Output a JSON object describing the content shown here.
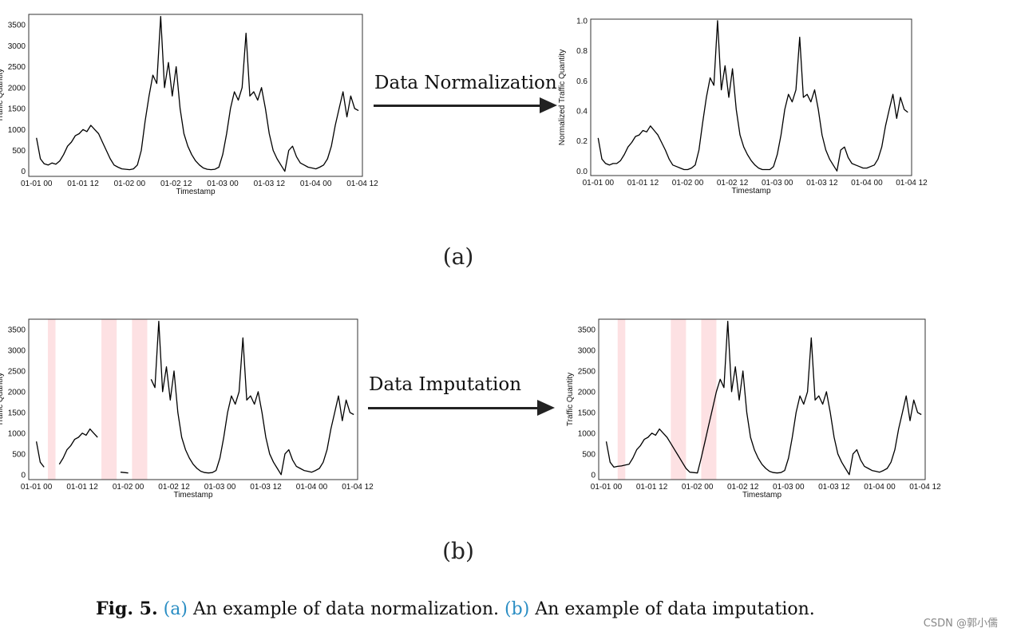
{
  "panels": {
    "a": {
      "label": "(a)",
      "arrow_label": "Data Normalization",
      "left_chart_id": "a_left",
      "right_chart_id": "a_right"
    },
    "b": {
      "label": "(b)",
      "arrow_label": "Data Imputation",
      "left_chart_id": "b_left",
      "right_chart_id": "b_right"
    }
  },
  "caption": {
    "fig": "Fig. 5.",
    "ref_a": "(a)",
    "text_a": " An example of data normalization. ",
    "ref_b": "(b)",
    "text_b": " An example of data imputation."
  },
  "watermark": "CSDN @郭小儒",
  "colors": {
    "line": "#000000",
    "missing_band": "#fde1e3",
    "caption_link": "#2b8ec4"
  },
  "chart_data": [
    {
      "id": "a_left",
      "type": "line",
      "xlabel": "Timestamp",
      "ylabel": "Traffic Quantity",
      "xlim": [
        -2,
        84
      ],
      "ylim": [
        -120,
        3750
      ],
      "xticks": [
        0,
        12,
        24,
        36,
        48,
        60,
        72,
        84
      ],
      "xtick_labels": [
        "01-01 00",
        "01-01 12",
        "01-02 00",
        "01-02 12",
        "01-03 00",
        "01-03 12",
        "01-04 00",
        "01-04 12"
      ],
      "yticks": [
        0,
        500,
        1000,
        1500,
        2000,
        2500,
        3000,
        3500
      ],
      "ytick_labels": [
        "0",
        "500",
        "1000",
        "1500",
        "2000",
        "2500",
        "3000",
        "3500"
      ],
      "x": [
        0,
        1,
        2,
        3,
        4,
        5,
        6,
        7,
        8,
        9,
        10,
        11,
        12,
        13,
        14,
        15,
        16,
        17,
        18,
        19,
        20,
        21,
        22,
        23,
        24,
        25,
        26,
        27,
        28,
        29,
        30,
        31,
        32,
        33,
        34,
        35,
        36,
        37,
        38,
        39,
        40,
        41,
        42,
        43,
        44,
        45,
        46,
        47,
        48,
        49,
        50,
        51,
        52,
        53,
        54,
        55,
        56,
        57,
        58,
        59,
        60,
        61,
        62,
        63,
        64,
        65,
        66,
        67,
        68,
        69,
        70,
        71,
        72,
        73,
        74,
        75,
        76,
        77,
        78,
        79,
        80,
        81,
        82,
        83
      ],
      "y": [
        800,
        300,
        180,
        150,
        200,
        170,
        250,
        400,
        600,
        700,
        850,
        900,
        1000,
        950,
        1100,
        1000,
        900,
        700,
        500,
        300,
        150,
        100,
        60,
        50,
        40,
        60,
        150,
        500,
        1200,
        1800,
        2300,
        2100,
        3700,
        2000,
        2600,
        1800,
        2500,
        1500,
        900,
        600,
        400,
        250,
        150,
        80,
        50,
        40,
        50,
        100,
        400,
        900,
        1500,
        1900,
        1700,
        2000,
        3300,
        1800,
        1900,
        1700,
        2000,
        1500,
        900,
        500,
        300,
        150,
        0,
        500,
        600,
        350,
        200,
        150,
        100,
        80,
        60,
        100,
        150,
        300,
        600,
        1100,
        1500,
        1900,
        1300,
        1800,
        1500,
        1450
      ]
    },
    {
      "id": "a_right",
      "type": "line",
      "xlabel": "Timestamp",
      "ylabel": "Normalized Traffic Quantity",
      "xlim": [
        -2,
        84
      ],
      "ylim": [
        -0.03,
        1.01
      ],
      "xticks": [
        0,
        12,
        24,
        36,
        48,
        60,
        72,
        84
      ],
      "xtick_labels": [
        "01-01 00",
        "01-01 12",
        "01-02 00",
        "01-02 12",
        "01-03 00",
        "01-03 12",
        "01-04 00",
        "01-04 12"
      ],
      "yticks": [
        0.0,
        0.2,
        0.4,
        0.6,
        0.8,
        1.0
      ],
      "ytick_labels": [
        "0.0",
        "0.2",
        "0.4",
        "0.6",
        "0.8",
        "1.0"
      ],
      "x": [
        0,
        1,
        2,
        3,
        4,
        5,
        6,
        7,
        8,
        9,
        10,
        11,
        12,
        13,
        14,
        15,
        16,
        17,
        18,
        19,
        20,
        21,
        22,
        23,
        24,
        25,
        26,
        27,
        28,
        29,
        30,
        31,
        32,
        33,
        34,
        35,
        36,
        37,
        38,
        39,
        40,
        41,
        42,
        43,
        44,
        45,
        46,
        47,
        48,
        49,
        50,
        51,
        52,
        53,
        54,
        55,
        56,
        57,
        58,
        59,
        60,
        61,
        62,
        63,
        64,
        65,
        66,
        67,
        68,
        69,
        70,
        71,
        72,
        73,
        74,
        75,
        76,
        77,
        78,
        79,
        80,
        81,
        82,
        83
      ],
      "y": [
        0.22,
        0.08,
        0.05,
        0.04,
        0.05,
        0.05,
        0.07,
        0.11,
        0.16,
        0.19,
        0.23,
        0.24,
        0.27,
        0.26,
        0.3,
        0.27,
        0.24,
        0.19,
        0.14,
        0.08,
        0.04,
        0.03,
        0.02,
        0.01,
        0.01,
        0.02,
        0.04,
        0.14,
        0.32,
        0.49,
        0.62,
        0.57,
        1.0,
        0.54,
        0.7,
        0.49,
        0.68,
        0.41,
        0.24,
        0.16,
        0.11,
        0.07,
        0.04,
        0.02,
        0.01,
        0.01,
        0.01,
        0.03,
        0.11,
        0.24,
        0.41,
        0.51,
        0.46,
        0.54,
        0.89,
        0.49,
        0.51,
        0.46,
        0.54,
        0.41,
        0.24,
        0.14,
        0.08,
        0.04,
        0.0,
        0.14,
        0.16,
        0.09,
        0.05,
        0.04,
        0.03,
        0.02,
        0.02,
        0.03,
        0.04,
        0.08,
        0.16,
        0.3,
        0.41,
        0.51,
        0.35,
        0.49,
        0.41,
        0.39
      ]
    },
    {
      "id": "b_left",
      "type": "line",
      "xlabel": "Timestamp",
      "ylabel": "Traffic Quantity",
      "xlim": [
        -2,
        84
      ],
      "ylim": [
        -120,
        3750
      ],
      "xticks": [
        0,
        12,
        24,
        36,
        48,
        60,
        72,
        84
      ],
      "xtick_labels": [
        "01-01 00",
        "01-01 12",
        "01-02 00",
        "01-02 12",
        "01-03 00",
        "01-03 12",
        "01-04 00",
        "01-04 12"
      ],
      "yticks": [
        0,
        500,
        1000,
        1500,
        2000,
        2500,
        3000,
        3500
      ],
      "ytick_labels": [
        "0",
        "500",
        "1000",
        "1500",
        "2000",
        "2500",
        "3000",
        "3500"
      ],
      "missing_ranges": [
        [
          3,
          5
        ],
        [
          17,
          21
        ],
        [
          25,
          29
        ]
      ],
      "x": [
        0,
        1,
        2,
        3,
        4,
        5,
        6,
        7,
        8,
        9,
        10,
        11,
        12,
        13,
        14,
        15,
        16,
        17,
        18,
        19,
        20,
        21,
        22,
        23,
        24,
        25,
        26,
        27,
        28,
        29,
        30,
        31,
        32,
        33,
        34,
        35,
        36,
        37,
        38,
        39,
        40,
        41,
        42,
        43,
        44,
        45,
        46,
        47,
        48,
        49,
        50,
        51,
        52,
        53,
        54,
        55,
        56,
        57,
        58,
        59,
        60,
        61,
        62,
        63,
        64,
        65,
        66,
        67,
        68,
        69,
        70,
        71,
        72,
        73,
        74,
        75,
        76,
        77,
        78,
        79,
        80,
        81,
        82,
        83
      ],
      "y": [
        800,
        300,
        180,
        null,
        null,
        null,
        250,
        400,
        600,
        700,
        850,
        900,
        1000,
        950,
        1100,
        1000,
        900,
        null,
        null,
        null,
        null,
        null,
        60,
        50,
        40,
        null,
        null,
        null,
        null,
        null,
        2300,
        2100,
        3700,
        2000,
        2600,
        1800,
        2500,
        1500,
        900,
        600,
        400,
        250,
        150,
        80,
        50,
        40,
        50,
        100,
        400,
        900,
        1500,
        1900,
        1700,
        2000,
        3300,
        1800,
        1900,
        1700,
        2000,
        1500,
        900,
        500,
        300,
        150,
        0,
        500,
        600,
        350,
        200,
        150,
        100,
        80,
        60,
        100,
        150,
        300,
        600,
        1100,
        1500,
        1900,
        1300,
        1800,
        1500,
        1450
      ]
    },
    {
      "id": "b_right",
      "type": "line",
      "xlabel": "Timestamp",
      "ylabel": "Traffic Quantity",
      "xlim": [
        -2,
        84
      ],
      "ylim": [
        -120,
        3750
      ],
      "xticks": [
        0,
        12,
        24,
        36,
        48,
        60,
        72,
        84
      ],
      "xtick_labels": [
        "01-01 00",
        "01-01 12",
        "01-02 00",
        "01-02 12",
        "01-03 00",
        "01-03 12",
        "01-04 00",
        "01-04 12"
      ],
      "yticks": [
        0,
        500,
        1000,
        1500,
        2000,
        2500,
        3000,
        3500
      ],
      "ytick_labels": [
        "0",
        "500",
        "1000",
        "1500",
        "2000",
        "2500",
        "3000",
        "3500"
      ],
      "missing_ranges": [
        [
          3,
          5
        ],
        [
          17,
          21
        ],
        [
          25,
          29
        ]
      ],
      "x": [
        0,
        1,
        2,
        3,
        4,
        5,
        6,
        7,
        8,
        9,
        10,
        11,
        12,
        13,
        14,
        15,
        16,
        17,
        18,
        19,
        20,
        21,
        22,
        23,
        24,
        25,
        26,
        27,
        28,
        29,
        30,
        31,
        32,
        33,
        34,
        35,
        36,
        37,
        38,
        39,
        40,
        41,
        42,
        43,
        44,
        45,
        46,
        47,
        48,
        49,
        50,
        51,
        52,
        53,
        54,
        55,
        56,
        57,
        58,
        59,
        60,
        61,
        62,
        63,
        64,
        65,
        66,
        67,
        68,
        69,
        70,
        71,
        72,
        73,
        74,
        75,
        76,
        77,
        78,
        79,
        80,
        81,
        82,
        83
      ],
      "y": [
        800,
        300,
        180,
        200,
        210,
        230,
        250,
        400,
        600,
        700,
        850,
        900,
        1000,
        950,
        1100,
        1000,
        900,
        750,
        600,
        450,
        300,
        150,
        60,
        50,
        40,
        400,
        800,
        1200,
        1600,
        2000,
        2300,
        2100,
        3700,
        2000,
        2600,
        1800,
        2500,
        1500,
        900,
        600,
        400,
        250,
        150,
        80,
        50,
        40,
        50,
        100,
        400,
        900,
        1500,
        1900,
        1700,
        2000,
        3300,
        1800,
        1900,
        1700,
        2000,
        1500,
        900,
        500,
        300,
        150,
        0,
        500,
        600,
        350,
        200,
        150,
        100,
        80,
        60,
        100,
        150,
        300,
        600,
        1100,
        1500,
        1900,
        1300,
        1800,
        1500,
        1450
      ]
    }
  ]
}
